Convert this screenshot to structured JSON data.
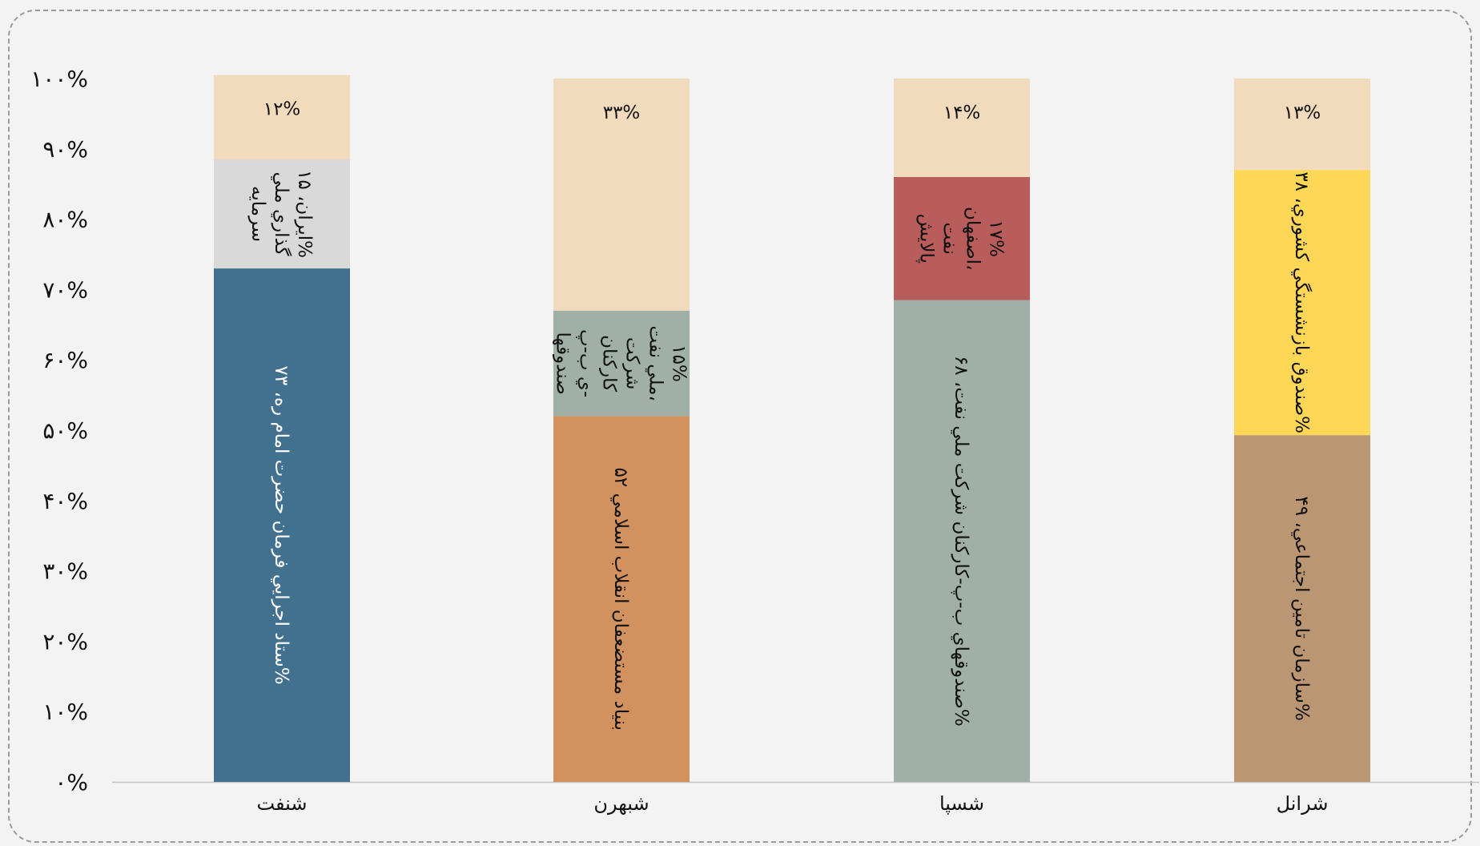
{
  "chart_data": {
    "type": "bar",
    "stacked": true,
    "title": "",
    "xlabel": "",
    "ylabel": "",
    "ylim": [
      0,
      100
    ],
    "grid": false,
    "legend": "none",
    "y_ticks": [
      "۰%",
      "۱۰%",
      "۲۰%",
      "۳۰%",
      "۴۰%",
      "۵۰%",
      "۶۰%",
      "۷۰%",
      "۸۰%",
      "۹۰%",
      "۱۰۰%"
    ],
    "categories": [
      "شنفت",
      "شبهرن",
      "شسپا",
      "شرانل"
    ],
    "bars": [
      {
        "category": "شنفت",
        "segments": [
          {
            "value": 73,
            "label": [
              "ستاد اجرايي فرمان حضرت امام ره، ۷۳%"
            ],
            "color": "#41718f",
            "vertical": true,
            "light": true
          },
          {
            "value": 15.5,
            "label": [
              "سرمايه",
              "گذاري ملي",
              "ايران، ۱۵%"
            ],
            "color": "#d9d9d9",
            "vertical": true
          },
          {
            "value": 12,
            "label": [
              "۱۲%"
            ],
            "color": "#f1dbbc",
            "vertical": false
          }
        ]
      },
      {
        "category": "شبهرن",
        "segments": [
          {
            "value": 52,
            "label": [
              "بنياد مستضعفان انقلاب اسلامي ۵۲"
            ],
            "color": "#d29260",
            "vertical": true
          },
          {
            "value": 15,
            "label": [
              "صندوقها",
              "ي ب-پ-",
              "کارکنان",
              "شرکت",
              "ملي نفت،",
              "۱۵%"
            ],
            "color": "#a0b0a7",
            "vertical": true
          },
          {
            "value": 33,
            "label": [
              "۳۳%"
            ],
            "color": "#f1dbbc",
            "vertical": false
          }
        ]
      },
      {
        "category": "شسپا",
        "segments": [
          {
            "value": 68.5,
            "label": [
              "صندوقهاي ب-پ-کارکنان شرکت ملي نفت، ۶۸%"
            ],
            "color": "#a0b0a7",
            "vertical": true
          },
          {
            "value": 17.5,
            "label": [
              "پالايش",
              "نفت",
              "اصفهان،",
              "۱۷%"
            ],
            "color": "#b85c5c",
            "vertical": true
          },
          {
            "value": 14,
            "label": [
              "۱۴%"
            ],
            "color": "#f1dbbc",
            "vertical": false
          }
        ]
      },
      {
        "category": "شرانل",
        "segments": [
          {
            "value": 49.3,
            "label": [
              "سازمان تامين اجتماعي، ۴۹%"
            ],
            "color": "#bb9673",
            "vertical": true
          },
          {
            "value": 37.7,
            "label": [
              "صندوق بازنشستگي کشوري، ۳۸%"
            ],
            "color": "#fed757",
            "vertical": true
          },
          {
            "value": 13,
            "label": [
              "۱۳%"
            ],
            "color": "#f1dbbc",
            "vertical": false
          }
        ]
      }
    ]
  }
}
